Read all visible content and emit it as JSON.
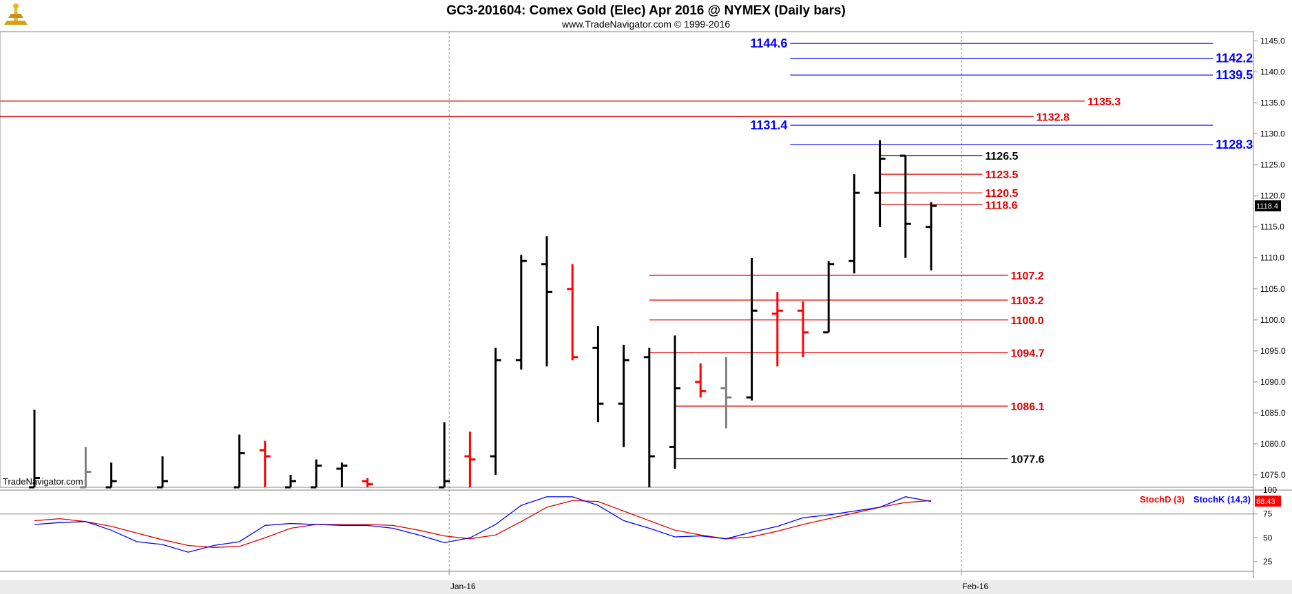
{
  "header": {
    "title": "GC3-201604:  Comex Gold (Elec) Apr 2016 @ NYMEX  (Daily bars)",
    "subtitle": "www.TradeNavigator.com © 1999-2016",
    "watermark": "TradeNavigator.com"
  },
  "colors": {
    "up": "#000000",
    "down": "#ff0000",
    "neutral": "#808080",
    "blue_level": "#0000ff",
    "red_level": "#e00000",
    "stoch_d": "#ff0000",
    "stoch_k": "#0000ff"
  },
  "chart_data": [
    {
      "type": "ohlc",
      "name": "price",
      "ylim": [
        1073,
        1146.5
      ],
      "yticks": [
        "1145.0",
        "1140.0",
        "1135.0",
        "1130.0",
        "1125.0",
        "1120.0",
        "1115.0",
        "1110.0",
        "1105.0",
        "1100.0",
        "1095.0",
        "1090.0",
        "1085.0",
        "1080.0",
        "1075.0"
      ],
      "xticks": [
        {
          "label": "Jan-16",
          "index": 16
        },
        {
          "label": "Feb-16",
          "index": 36
        }
      ],
      "last_price": "1118.4",
      "bars": [
        {
          "i": 0,
          "o": 1073.0,
          "h": 1085.5,
          "l": 1073.0,
          "c": 1074.5,
          "color": "up"
        },
        {
          "i": 2,
          "o": 1073.0,
          "h": 1079.5,
          "l": 1073.0,
          "c": 1075.5,
          "color": "neutral"
        },
        {
          "i": 3,
          "o": 1073.0,
          "h": 1077.0,
          "l": 1073.0,
          "c": 1074.0,
          "color": "up"
        },
        {
          "i": 5,
          "o": 1073.0,
          "h": 1078.0,
          "l": 1073.0,
          "c": 1074.0,
          "color": "up"
        },
        {
          "i": 8,
          "o": 1073.0,
          "h": 1081.5,
          "l": 1073.0,
          "c": 1078.5,
          "color": "up"
        },
        {
          "i": 9,
          "o": 1079.0,
          "h": 1080.5,
          "l": 1073.0,
          "c": 1078.0,
          "color": "down"
        },
        {
          "i": 10,
          "o": 1073.0,
          "h": 1075.0,
          "l": 1073.0,
          "c": 1074.0,
          "color": "up"
        },
        {
          "i": 11,
          "o": 1073.0,
          "h": 1077.5,
          "l": 1073.0,
          "c": 1076.5,
          "color": "up"
        },
        {
          "i": 12,
          "o": 1076.0,
          "h": 1077.0,
          "l": 1073.0,
          "c": 1076.5,
          "color": "up"
        },
        {
          "i": 13,
          "o": 1074.0,
          "h": 1074.5,
          "l": 1073.0,
          "c": 1073.5,
          "color": "down"
        },
        {
          "i": 16,
          "o": 1073.0,
          "h": 1083.5,
          "l": 1073.0,
          "c": 1074.0,
          "color": "up"
        },
        {
          "i": 17,
          "o": 1078.0,
          "h": 1082.0,
          "l": 1073.0,
          "c": 1077.5,
          "color": "down"
        },
        {
          "i": 18,
          "o": 1078.0,
          "h": 1095.5,
          "l": 1075.0,
          "c": 1093.5,
          "color": "up"
        },
        {
          "i": 19,
          "o": 1093.5,
          "h": 1110.5,
          "l": 1092.0,
          "c": 1109.5,
          "color": "up"
        },
        {
          "i": 20,
          "o": 1109.0,
          "h": 1113.5,
          "l": 1092.5,
          "c": 1104.5,
          "color": "up"
        },
        {
          "i": 21,
          "o": 1105.0,
          "h": 1109.0,
          "l": 1093.5,
          "c": 1094.0,
          "color": "down"
        },
        {
          "i": 22,
          "o": 1095.5,
          "h": 1099.0,
          "l": 1083.5,
          "c": 1086.5,
          "color": "up"
        },
        {
          "i": 23,
          "o": 1086.5,
          "h": 1096.0,
          "l": 1079.5,
          "c": 1093.5,
          "color": "up"
        },
        {
          "i": 24,
          "o": 1094.0,
          "h": 1095.5,
          "l": 1073.0,
          "c": 1078.0,
          "color": "up"
        },
        {
          "i": 25,
          "o": 1079.5,
          "h": 1097.5,
          "l": 1076.0,
          "c": 1089.0,
          "color": "up"
        },
        {
          "i": 26,
          "o": 1090.0,
          "h": 1093.0,
          "l": 1087.5,
          "c": 1088.5,
          "color": "down"
        },
        {
          "i": 27,
          "o": 1089.0,
          "h": 1094.0,
          "l": 1082.5,
          "c": 1087.5,
          "color": "neutral"
        },
        {
          "i": 28,
          "o": 1087.5,
          "h": 1110.0,
          "l": 1087.0,
          "c": 1101.5,
          "color": "up"
        },
        {
          "i": 29,
          "o": 1101.0,
          "h": 1104.5,
          "l": 1092.5,
          "c": 1101.5,
          "color": "down"
        },
        {
          "i": 30,
          "o": 1101.5,
          "h": 1103.0,
          "l": 1094.0,
          "c": 1098.0,
          "color": "down"
        },
        {
          "i": 31,
          "o": 1098.0,
          "h": 1109.5,
          "l": 1098.0,
          "c": 1109.0,
          "color": "up"
        },
        {
          "i": 32,
          "o": 1109.5,
          "h": 1123.5,
          "l": 1107.5,
          "c": 1120.5,
          "color": "up"
        },
        {
          "i": 33,
          "o": 1120.5,
          "h": 1129.0,
          "l": 1115.0,
          "c": 1126.0,
          "color": "up"
        },
        {
          "i": 34,
          "o": 1126.5,
          "h": 1126.5,
          "l": 1110.0,
          "c": 1115.5,
          "color": "up"
        },
        {
          "i": 35,
          "o": 1115.0,
          "h": 1119.0,
          "l": 1108.0,
          "c": 1118.4,
          "color": "up"
        }
      ],
      "levels": [
        {
          "value": 1144.6,
          "label": "1144.6",
          "color": "blue",
          "from": 29.5,
          "to": 46,
          "label_side": "left"
        },
        {
          "value": 1142.2,
          "label": "1142.2",
          "color": "blue",
          "from": 29.5,
          "to": 46,
          "label_side": "right"
        },
        {
          "value": 1139.5,
          "label": "1139.5",
          "color": "blue",
          "from": 29.5,
          "to": 46,
          "label_side": "right"
        },
        {
          "value": 1135.3,
          "label": "1135.3",
          "color": "red",
          "from": -2,
          "to": 41,
          "label_side": "right"
        },
        {
          "value": 1132.8,
          "label": "1132.8",
          "color": "red",
          "from": -2,
          "to": 39,
          "label_side": "right"
        },
        {
          "value": 1131.4,
          "label": "1131.4",
          "color": "blue",
          "from": 29.5,
          "to": 46,
          "label_side": "left"
        },
        {
          "value": 1128.3,
          "label": "1128.3",
          "color": "blue",
          "from": 29.5,
          "to": 46,
          "label_side": "right"
        },
        {
          "value": 1126.5,
          "label": "1126.5",
          "color": "black",
          "from": 33,
          "to": 37,
          "label_side": "right"
        },
        {
          "value": 1123.5,
          "label": "1123.5",
          "color": "red",
          "from": 33,
          "to": 37,
          "label_side": "right"
        },
        {
          "value": 1120.5,
          "label": "1120.5",
          "color": "red",
          "from": 33,
          "to": 37,
          "label_side": "right"
        },
        {
          "value": 1118.6,
          "label": "1118.6",
          "color": "red",
          "from": 33,
          "to": 37,
          "label_side": "right"
        },
        {
          "value": 1107.2,
          "label": "1107.2",
          "color": "red",
          "from": 24,
          "to": 38,
          "label_side": "right"
        },
        {
          "value": 1103.2,
          "label": "1103.2",
          "color": "red",
          "from": 24,
          "to": 38,
          "label_side": "right"
        },
        {
          "value": 1100.0,
          "label": "1100.0",
          "color": "red",
          "from": 24,
          "to": 38,
          "label_side": "right"
        },
        {
          "value": 1094.7,
          "label": "1094.7",
          "color": "red",
          "from": 24,
          "to": 38,
          "label_side": "right"
        },
        {
          "value": 1086.1,
          "label": "1086.1",
          "color": "red",
          "from": 25,
          "to": 38,
          "label_side": "right"
        },
        {
          "value": 1077.6,
          "label": "1077.6",
          "color": "black",
          "from": 25,
          "to": 38,
          "label_side": "right"
        }
      ]
    },
    {
      "type": "line",
      "name": "stochastic",
      "ylim": [
        15,
        100
      ],
      "yticks": [
        "100",
        "75",
        "50",
        "25"
      ],
      "legend": [
        "StochD (3)",
        "StochK (14,3)"
      ],
      "last_value": "88.43",
      "series": [
        {
          "name": "StochD (3)",
          "color": "red",
          "x": [
            0,
            1,
            2,
            3,
            4,
            5,
            6,
            7,
            8,
            9,
            10,
            11,
            12,
            13,
            14,
            15,
            16,
            17,
            18,
            19,
            20,
            21,
            22,
            23,
            24,
            25,
            26,
            27,
            28,
            29,
            30,
            31,
            32,
            33,
            34,
            35
          ],
          "values": [
            68,
            70,
            67,
            62,
            55,
            48,
            42,
            40,
            41,
            50,
            60,
            64,
            64,
            64,
            63,
            58,
            52,
            49,
            53,
            67,
            82,
            89,
            88,
            78,
            68,
            58,
            53,
            49,
            51,
            57,
            64,
            70,
            76,
            82,
            87,
            89
          ]
        },
        {
          "name": "StochK (14,3)",
          "color": "blue",
          "x": [
            0,
            1,
            2,
            3,
            4,
            5,
            6,
            7,
            8,
            9,
            10,
            11,
            12,
            13,
            14,
            15,
            16,
            17,
            18,
            19,
            20,
            21,
            22,
            23,
            24,
            25,
            26,
            27,
            28,
            29,
            30,
            31,
            32,
            33,
            34,
            35
          ],
          "values": [
            64,
            66,
            67,
            58,
            46,
            43,
            35,
            42,
            46,
            63,
            65,
            64,
            63,
            63,
            60,
            53,
            45,
            50,
            64,
            84,
            93,
            93,
            84,
            68,
            60,
            51,
            52,
            49,
            56,
            62,
            71,
            74,
            78,
            82,
            93,
            88
          ]
        }
      ]
    }
  ]
}
